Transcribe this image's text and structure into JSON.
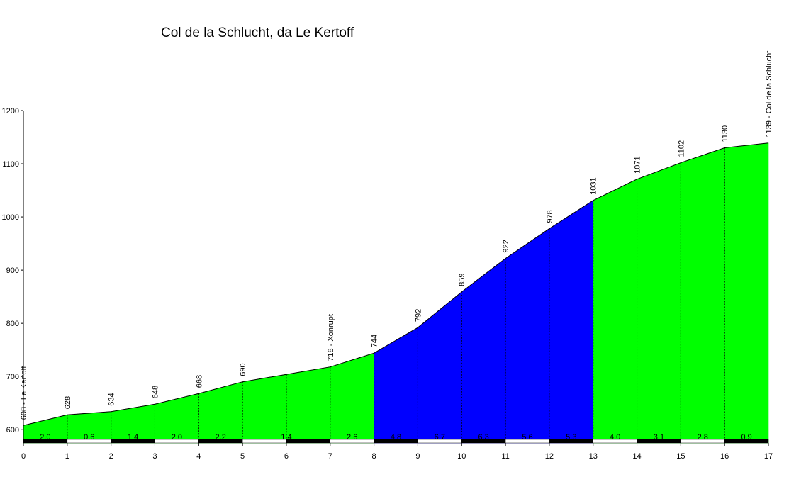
{
  "chart_data": {
    "type": "area",
    "title": "Col de la Schlucht, da Le Kertoff",
    "xlabel": "",
    "ylabel": "",
    "xlim": [
      0,
      17
    ],
    "ylim": [
      575,
      1200
    ],
    "y_ticks": [
      600,
      700,
      800,
      900,
      1000,
      1100,
      1200
    ],
    "x_ticks": [
      0,
      1,
      2,
      3,
      4,
      5,
      6,
      7,
      8,
      9,
      10,
      11,
      12,
      13,
      14,
      15,
      16,
      17
    ],
    "points": [
      {
        "x": 0,
        "y": 608,
        "label": "608 - Le Kertoff"
      },
      {
        "x": 1,
        "y": 628,
        "label": "628"
      },
      {
        "x": 2,
        "y": 634,
        "label": "634"
      },
      {
        "x": 3,
        "y": 648,
        "label": "648"
      },
      {
        "x": 4,
        "y": 668,
        "label": "668"
      },
      {
        "x": 5,
        "y": 690,
        "label": "690"
      },
      {
        "x": 6,
        "y": 704,
        "label": ""
      },
      {
        "x": 7,
        "y": 718,
        "label": "718 - Xonrupt"
      },
      {
        "x": 8,
        "y": 744,
        "label": "744"
      },
      {
        "x": 9,
        "y": 792,
        "label": "792"
      },
      {
        "x": 10,
        "y": 859,
        "label": "859"
      },
      {
        "x": 11,
        "y": 922,
        "label": "922"
      },
      {
        "x": 12,
        "y": 978,
        "label": "978"
      },
      {
        "x": 13,
        "y": 1031,
        "label": "1031"
      },
      {
        "x": 14,
        "y": 1071,
        "label": "1071"
      },
      {
        "x": 15,
        "y": 1102,
        "label": "1102"
      },
      {
        "x": 16,
        "y": 1130,
        "label": "1130"
      },
      {
        "x": 17,
        "y": 1139,
        "label": "1139 - Col de la Schlucht"
      }
    ],
    "segments": [
      {
        "from": 0,
        "to": 1,
        "gradient": "2.0"
      },
      {
        "from": 1,
        "to": 2,
        "gradient": "0.6"
      },
      {
        "from": 2,
        "to": 3,
        "gradient": "1.4"
      },
      {
        "from": 3,
        "to": 4,
        "gradient": "2.0"
      },
      {
        "from": 4,
        "to": 5,
        "gradient": "2.2"
      },
      {
        "from": 5,
        "to": 7,
        "gradient": "1.4"
      },
      {
        "from": 7,
        "to": 8,
        "gradient": "2.6"
      },
      {
        "from": 8,
        "to": 9,
        "gradient": "4.8"
      },
      {
        "from": 9,
        "to": 10,
        "gradient": "6.7"
      },
      {
        "from": 10,
        "to": 11,
        "gradient": "6.3"
      },
      {
        "from": 11,
        "to": 12,
        "gradient": "5.6"
      },
      {
        "from": 12,
        "to": 13,
        "gradient": "5.3"
      },
      {
        "from": 13,
        "to": 14,
        "gradient": "4.0"
      },
      {
        "from": 14,
        "to": 15,
        "gradient": "3.1"
      },
      {
        "from": 15,
        "to": 16,
        "gradient": "2.8"
      },
      {
        "from": 16,
        "to": 17,
        "gradient": "0.9"
      }
    ],
    "colors": {
      "low_gradient": "#00ff00",
      "high_gradient": "#0000ff",
      "outline": "#000000",
      "bar_dark": "#000000",
      "bar_light": "#ffffff"
    },
    "high_range": [
      8,
      13
    ],
    "grid": false
  }
}
